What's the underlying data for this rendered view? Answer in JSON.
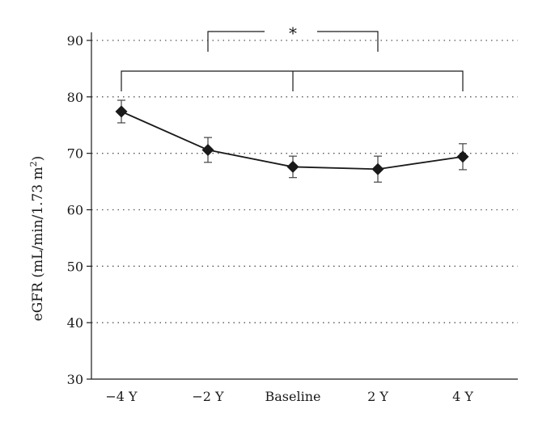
{
  "chart_data": {
    "type": "line",
    "ylabel_main": "eGFR (mL/min/1.73 m",
    "ylabel_sup": "2",
    "ylabel_close": ")",
    "xlabel": "",
    "categories": [
      "−4 Y",
      "−2 Y",
      "Baseline",
      "2 Y",
      "4 Y"
    ],
    "values": [
      77.4,
      70.6,
      67.6,
      67.2,
      69.4
    ],
    "error": [
      2.0,
      2.2,
      1.9,
      2.3,
      2.3
    ],
    "ylim": [
      30,
      90
    ],
    "yticks": [
      30,
      40,
      50,
      60,
      70,
      80,
      90
    ],
    "grid": "dotted-horizontal",
    "marker": "diamond",
    "color": "#1a1a1a",
    "annotations": [
      {
        "type": "bracket",
        "from": "−2 Y",
        "to": "2 Y",
        "label": "*"
      },
      {
        "type": "bracket",
        "from": "−4 Y",
        "to": "4 Y",
        "mid": "Baseline",
        "label": ""
      }
    ]
  }
}
